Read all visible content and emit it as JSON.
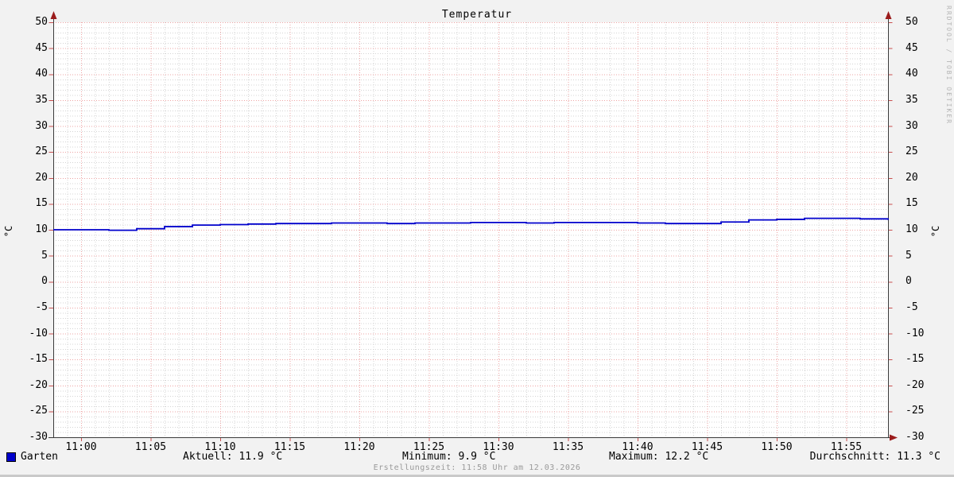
{
  "title": "Temperatur",
  "watermark": "RRDTOOL / TOBI OETIKER",
  "legend": {
    "name": "Garten",
    "color": "#0000cc"
  },
  "stats": {
    "aktuell": "Aktuell: 11.9 °C",
    "minimum": "Minimum: 9.9 °C",
    "maximum": "Maximum: 12.2 °C",
    "durchschnitt": "Durchschnitt: 11.3 °C"
  },
  "footer": "Erstellungszeit: 11:58 Uhr am 12.03.2026",
  "chart_data": {
    "type": "line",
    "step": true,
    "title": "Temperatur",
    "ylabel": "°C",
    "xlabel": "",
    "ylim": [
      -30,
      50
    ],
    "y_major_step": 5,
    "y_minor_step": 1,
    "x_window": [
      "10:58",
      "11:58"
    ],
    "x_major_step_min": 5,
    "x_minor_step_min": 1,
    "x_tick_labels": [
      "11:00",
      "11:05",
      "11:10",
      "11:15",
      "11:20",
      "11:25",
      "11:30",
      "11:35",
      "11:40",
      "11:45",
      "11:50",
      "11:55"
    ],
    "grid_on": true,
    "legend_position": "bottom",
    "colors": {
      "plot_bg": "#ffffff",
      "outer_bg": "#f2f2f2",
      "major_grid": "#eea4a4",
      "minor_grid": "#d4d4d4",
      "tick": "#c94f4f",
      "axis": "#3a3a3a",
      "arrow": "#9b1c1c",
      "line": "#0000cc"
    },
    "series": [
      {
        "name": "Garten",
        "color": "#0000cc",
        "x_times": [
          "10:58",
          "11:00",
          "11:02",
          "11:04",
          "11:06",
          "11:08",
          "11:10",
          "11:12",
          "11:14",
          "11:16",
          "11:18",
          "11:20",
          "11:22",
          "11:24",
          "11:26",
          "11:28",
          "11:30",
          "11:32",
          "11:34",
          "11:36",
          "11:38",
          "11:40",
          "11:42",
          "11:44",
          "11:46",
          "11:48",
          "11:50",
          "11:52",
          "11:54",
          "11:56",
          "11:58"
        ],
        "values": [
          10.0,
          10.0,
          9.9,
          10.2,
          10.6,
          10.9,
          11.0,
          11.1,
          11.2,
          11.2,
          11.3,
          11.3,
          11.2,
          11.3,
          11.3,
          11.4,
          11.4,
          11.3,
          11.4,
          11.4,
          11.4,
          11.3,
          11.2,
          11.2,
          11.5,
          11.9,
          12.0,
          12.2,
          12.2,
          12.1,
          11.9
        ]
      }
    ]
  }
}
